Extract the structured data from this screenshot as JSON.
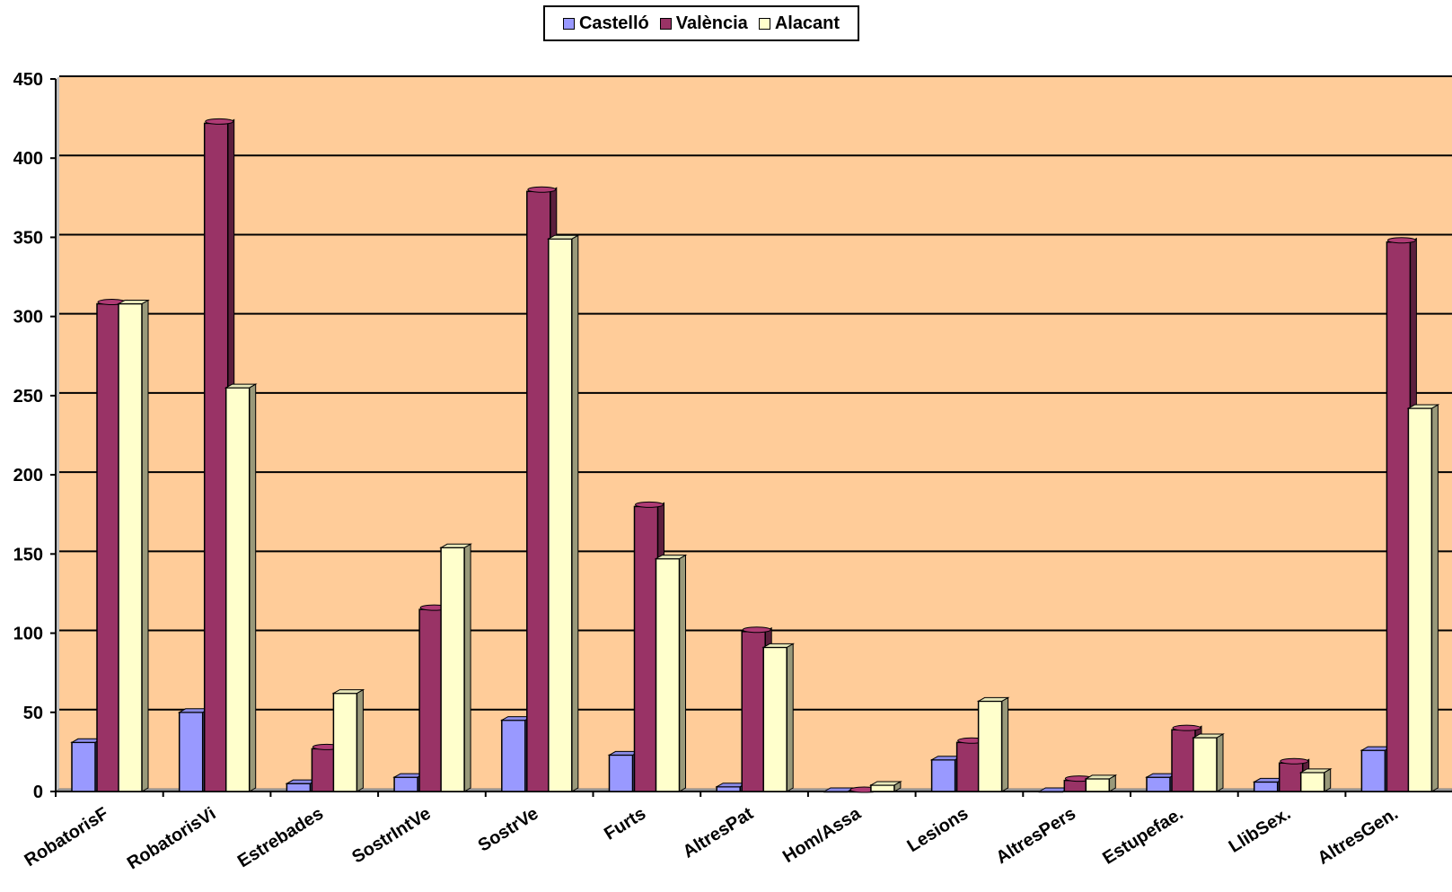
{
  "chart_data": {
    "type": "bar",
    "title": "",
    "xlabel": "",
    "ylabel": "",
    "ylim": [
      0,
      450
    ],
    "y_ticks": [
      0,
      50,
      100,
      150,
      200,
      250,
      300,
      350,
      400,
      450
    ],
    "grid": true,
    "legend_position": "top-center",
    "background_color": "#FFCC99",
    "categories": [
      "RobatorisF",
      "RobatorisVi",
      "Estrebades",
      "SostrIntVe",
      "SostrVe",
      "Furts",
      "AltresPat",
      "Hom/Assa",
      "Lesions",
      "AltresPers",
      "Estupefae.",
      "LlibSex.",
      "AltresGen."
    ],
    "series": [
      {
        "name": "Castelló",
        "color": "#9999FF",
        "values": [
          31,
          50,
          5,
          9,
          45,
          23,
          3,
          0,
          20,
          0,
          9,
          6,
          26
        ]
      },
      {
        "name": "València",
        "color": "#993366",
        "values": [
          308,
          422,
          27,
          115,
          379,
          180,
          101,
          0,
          31,
          7,
          39,
          18,
          347
        ]
      },
      {
        "name": "Alacant",
        "color": "#FFFFCC",
        "values": [
          308,
          255,
          62,
          154,
          349,
          147,
          91,
          4,
          57,
          8,
          34,
          12,
          242
        ]
      }
    ]
  }
}
